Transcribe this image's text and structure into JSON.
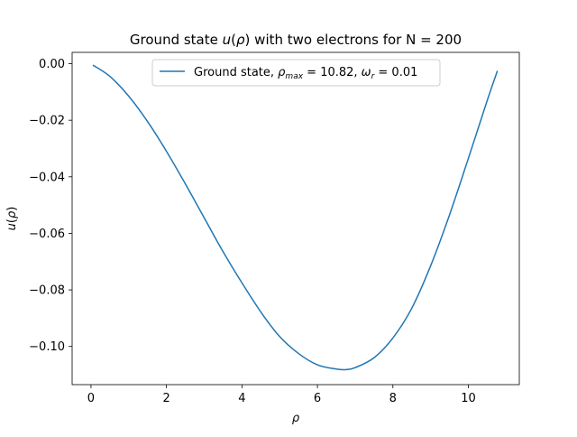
{
  "chart_data": {
    "type": "line",
    "title": "Ground state u(ρ) with two electrons for N = 200",
    "xlabel": "ρ",
    "ylabel": "u(ρ)",
    "xlim": [
      -0.5,
      11.35
    ],
    "ylim": [
      -0.1135,
      0.004
    ],
    "xticks": [
      0,
      2,
      4,
      6,
      8,
      10
    ],
    "yticks": [
      0.0,
      -0.02,
      -0.04,
      -0.06,
      -0.08,
      -0.1
    ],
    "xtick_labels": [
      "0",
      "2",
      "4",
      "6",
      "8",
      "10"
    ],
    "ytick_labels": [
      "0.00",
      "−0.02",
      "−0.04",
      "−0.06",
      "−0.08",
      "−0.10"
    ],
    "grid": false,
    "legend_position": "top-center",
    "legend": [
      "Ground state, ρmax = 10.82, ωr = 0.01"
    ],
    "series": [
      {
        "name": "Ground state, ρmax = 10.82, ωr = 0.01",
        "color": "#1f77b4",
        "x": [
          0.05,
          0.5,
          1.0,
          1.5,
          2.0,
          2.5,
          3.0,
          3.5,
          4.0,
          4.5,
          5.0,
          5.5,
          6.0,
          6.5,
          6.75,
          7.0,
          7.5,
          8.0,
          8.5,
          9.0,
          9.5,
          10.0,
          10.5,
          10.77
        ],
        "y": [
          -0.0005,
          -0.0045,
          -0.0115,
          -0.0205,
          -0.031,
          -0.0425,
          -0.0545,
          -0.0665,
          -0.0775,
          -0.0878,
          -0.0965,
          -0.1025,
          -0.1065,
          -0.108,
          -0.1082,
          -0.1075,
          -0.104,
          -0.097,
          -0.0865,
          -0.0715,
          -0.0535,
          -0.0335,
          -0.013,
          -0.0025
        ]
      }
    ]
  },
  "legend_label": {
    "prefix": "Ground state, ",
    "rho": "ρ",
    "rho_sub": "max",
    "rho_val": " = 10.82, ",
    "omega": "ω",
    "omega_sub": "r",
    "omega_val": " = 0.01"
  },
  "title_parts": {
    "before": "Ground state ",
    "func": "u",
    "arg_open": "(",
    "arg": "ρ",
    "arg_close": ")",
    "after": " with two electrons for N = 200"
  },
  "ylabel_parts": {
    "func": "u",
    "open": "(",
    "arg": "ρ",
    "close": ")"
  }
}
